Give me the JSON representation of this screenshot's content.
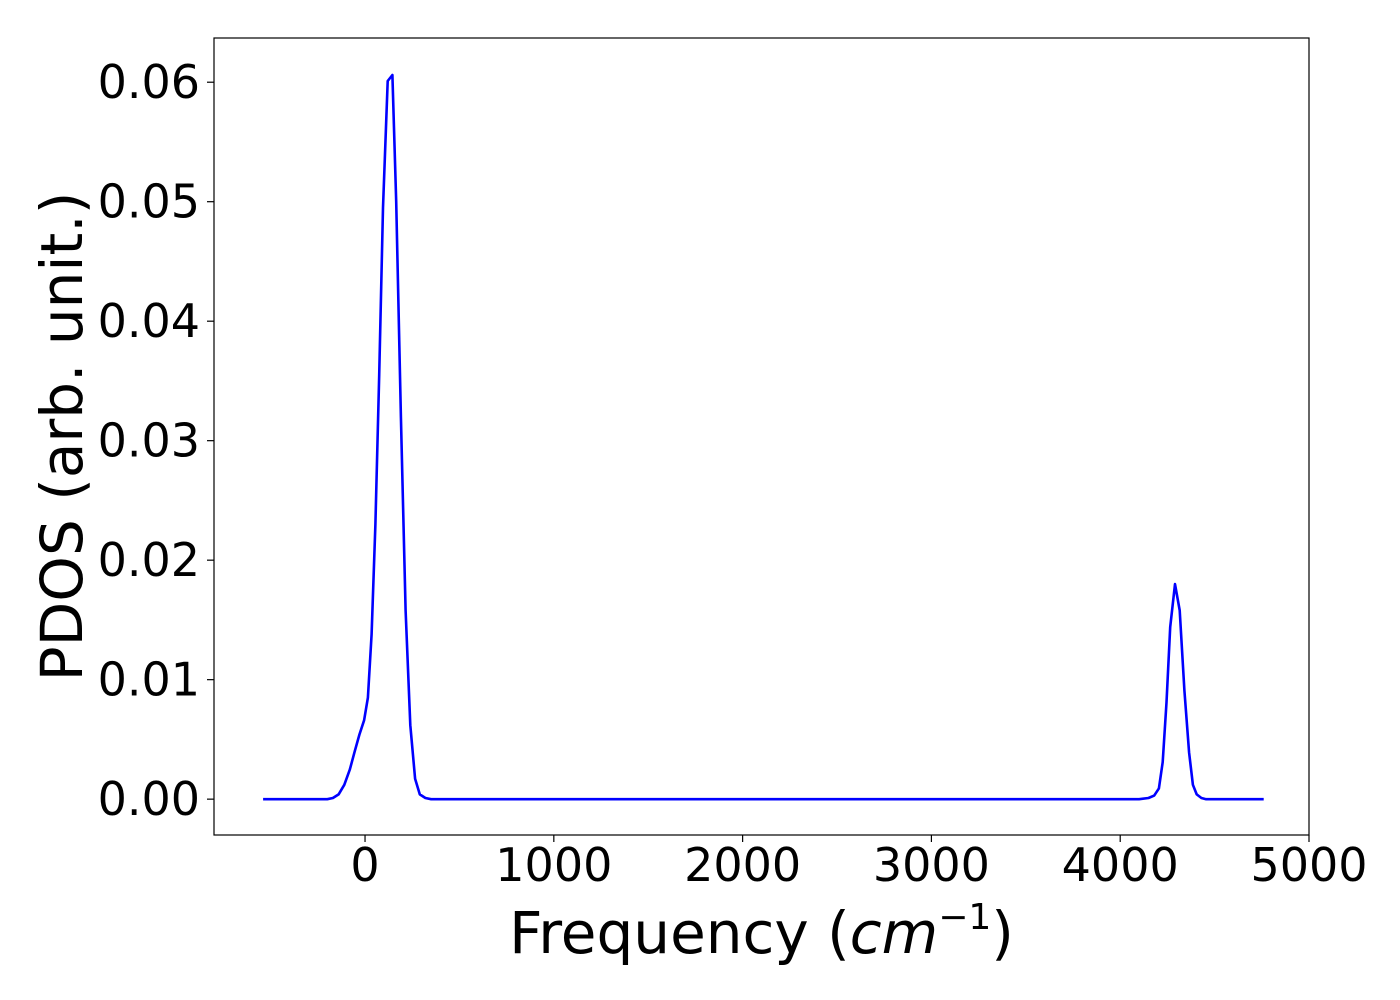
{
  "chart_data": {
    "type": "line",
    "xlabel": {
      "prefix": "Frequency (",
      "var": "cm",
      "sup": "−1",
      "suffix": ")"
    },
    "ylabel": "PDOS (arb. unit.)",
    "xlim": [
      -800,
      5000
    ],
    "ylim": [
      -0.003,
      0.0637
    ],
    "xticks": [
      {
        "value": 0,
        "label": "0"
      },
      {
        "value": 1000,
        "label": "1000"
      },
      {
        "value": 2000,
        "label": "2000"
      },
      {
        "value": 3000,
        "label": "3000"
      },
      {
        "value": 4000,
        "label": "4000"
      },
      {
        "value": 5000,
        "label": "5000"
      }
    ],
    "yticks": [
      {
        "value": 0.0,
        "label": "0.00"
      },
      {
        "value": 0.01,
        "label": "0.01"
      },
      {
        "value": 0.02,
        "label": "0.02"
      },
      {
        "value": 0.03,
        "label": "0.03"
      },
      {
        "value": 0.04,
        "label": "0.04"
      },
      {
        "value": 0.05,
        "label": "0.05"
      },
      {
        "value": 0.06,
        "label": "0.06"
      }
    ],
    "grid": false,
    "series": [
      {
        "color": "#0000ff",
        "x": [
          -540,
          -200,
          -170,
          -140,
          -110,
          -80,
          -55,
          -30,
          -5,
          15,
          35,
          55,
          75,
          95,
          120,
          145,
          165,
          190,
          215,
          240,
          265,
          290,
          320,
          350,
          4100,
          4150,
          4180,
          4205,
          4225,
          4245,
          4265,
          4290,
          4315,
          4340,
          4365,
          4385,
          4405,
          4430,
          4455,
          4490,
          4760
        ],
        "y": [
          0.0,
          0.0,
          0.0001,
          0.0004,
          0.0012,
          0.0025,
          0.004,
          0.0054,
          0.0066,
          0.0085,
          0.0138,
          0.023,
          0.0355,
          0.0495,
          0.0601,
          0.0606,
          0.05,
          0.032,
          0.0158,
          0.0062,
          0.0017,
          0.0004,
          0.0001,
          0.0,
          0.0,
          0.0001,
          0.0003,
          0.0009,
          0.0031,
          0.0081,
          0.0144,
          0.018,
          0.0158,
          0.0091,
          0.0039,
          0.0012,
          0.0004,
          0.0001,
          0.0,
          0.0,
          0.0
        ]
      }
    ]
  }
}
